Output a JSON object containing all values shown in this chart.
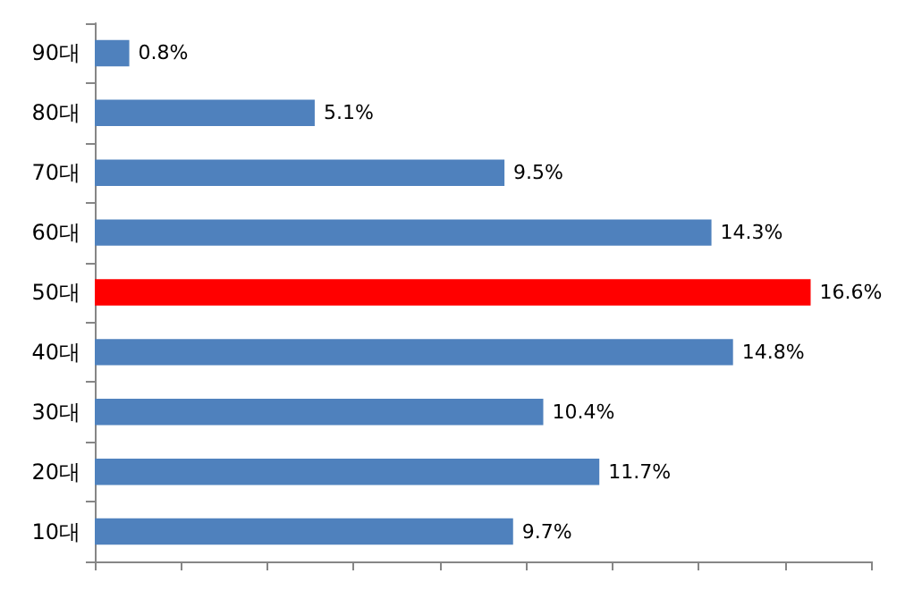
{
  "chart_data": {
    "type": "bar",
    "orientation": "horizontal",
    "categories": [
      "90대",
      "80대",
      "70대",
      "60대",
      "50대",
      "40대",
      "30대",
      "20대",
      "10대"
    ],
    "values": [
      0.8,
      5.1,
      9.5,
      14.3,
      16.6,
      14.8,
      10.4,
      11.7,
      9.7
    ],
    "value_labels": [
      "0.8%",
      "5.1%",
      "9.5%",
      "14.3%",
      "16.6%",
      "14.8%",
      "10.4%",
      "11.7%",
      "9.7%"
    ],
    "colors": [
      "#4f81bd",
      "#4f81bd",
      "#4f81bd",
      "#4f81bd",
      "#ff0000",
      "#4f81bd",
      "#4f81bd",
      "#4f81bd",
      "#4f81bd"
    ],
    "xlim": [
      0,
      18
    ],
    "xticks": [
      {
        "value": 0,
        "label": null
      },
      {
        "value": 2,
        "label": null
      },
      {
        "value": 4,
        "label": null
      },
      {
        "value": 6,
        "label": null
      },
      {
        "value": 8,
        "label": null
      },
      {
        "value": 10,
        "label": null
      },
      {
        "value": 12,
        "label": null
      },
      {
        "value": 14,
        "label": null
      },
      {
        "value": 16,
        "label": null
      },
      {
        "value": 18,
        "label": null
      }
    ],
    "tick_labels": "y",
    "grid": false
  }
}
